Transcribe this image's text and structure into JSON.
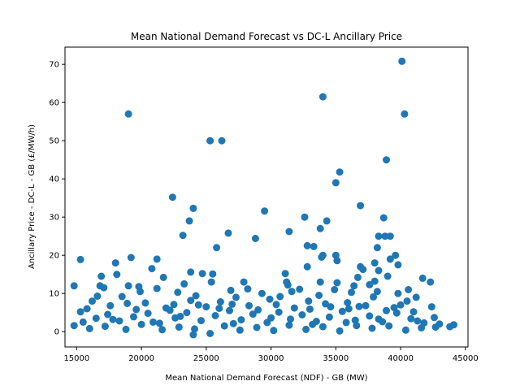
{
  "chart_data": {
    "type": "scatter",
    "title": "Mean National Demand Forecast vs DC-L Ancillary Price",
    "xlabel": "Mean National Demand Forecast (NDF) - GB (MW)",
    "ylabel": "Ancillary Price - DC-L - GB (£/MW/h)",
    "xlim": [
      14100,
      45200
    ],
    "ylim": [
      -4.0,
      74.5
    ],
    "x_ticks": [
      15000,
      20000,
      25000,
      30000,
      35000,
      40000,
      45000
    ],
    "y_ticks": [
      0,
      10,
      20,
      30,
      40,
      50,
      60,
      70
    ],
    "grid": false,
    "legend": "none",
    "marker_color": "#1f77b4",
    "series": [
      {
        "points": [
          [
            40100,
            70.8
          ],
          [
            34000,
            61.5
          ],
          [
            19000,
            57.0
          ],
          [
            40300,
            57.0
          ],
          [
            25300,
            50.0
          ],
          [
            26200,
            50.0
          ],
          [
            38900,
            45.0
          ],
          [
            35300,
            41.8
          ],
          [
            35000,
            39.0
          ],
          [
            22400,
            35.2
          ],
          [
            36900,
            33.0
          ],
          [
            24000,
            32.3
          ],
          [
            29500,
            31.6
          ],
          [
            32600,
            30.0
          ],
          [
            38700,
            29.8
          ],
          [
            34300,
            29.0
          ],
          [
            23700,
            29.0
          ],
          [
            33800,
            27.0
          ],
          [
            31400,
            26.2
          ],
          [
            26700,
            25.8
          ],
          [
            23200,
            25.2
          ],
          [
            38300,
            25.0
          ],
          [
            38800,
            25.0
          ],
          [
            39200,
            25.0
          ],
          [
            28800,
            24.4
          ],
          [
            32800,
            22.5
          ],
          [
            33300,
            22.3
          ],
          [
            38200,
            22.0
          ],
          [
            25800,
            22.0
          ],
          [
            15300,
            18.9
          ],
          [
            19200,
            19.4
          ],
          [
            21200,
            19.0
          ],
          [
            34000,
            20.0
          ],
          [
            35000,
            20.0
          ],
          [
            39600,
            20.0
          ],
          [
            39200,
            19.0
          ],
          [
            33900,
            19.5
          ],
          [
            35100,
            18.6
          ],
          [
            18000,
            18.0
          ],
          [
            38000,
            18.0
          ],
          [
            36900,
            17.0
          ],
          [
            39800,
            17.5
          ],
          [
            32800,
            17.0
          ],
          [
            37100,
            16.3
          ],
          [
            20800,
            16.5
          ],
          [
            38300,
            16.0
          ],
          [
            23800,
            15.6
          ],
          [
            24700,
            15.2
          ],
          [
            25500,
            15.1
          ],
          [
            31100,
            15.2
          ],
          [
            18100,
            15.0
          ],
          [
            16900,
            14.5
          ],
          [
            39000,
            14.5
          ],
          [
            21700,
            14.2
          ],
          [
            41700,
            14.0
          ],
          [
            36700,
            14.2
          ],
          [
            31200,
            13.0
          ],
          [
            33800,
            13.0
          ],
          [
            35100,
            12.8
          ],
          [
            42300,
            13.0
          ],
          [
            38000,
            13.2
          ],
          [
            23300,
            12.5
          ],
          [
            25400,
            13.0
          ],
          [
            27900,
            13.0
          ],
          [
            16800,
            12.0
          ],
          [
            19000,
            12.0
          ],
          [
            36400,
            12.0
          ],
          [
            31300,
            12.2
          ],
          [
            37600,
            12.3
          ],
          [
            17100,
            11.5
          ],
          [
            19800,
            11.8
          ],
          [
            21200,
            11.3
          ],
          [
            28200,
            11.2
          ],
          [
            32200,
            11.1
          ],
          [
            34900,
            11.0
          ],
          [
            40600,
            11.0
          ],
          [
            31600,
            10.5
          ],
          [
            14800,
            12.0
          ],
          [
            19900,
            10.5
          ],
          [
            22800,
            10.3
          ],
          [
            26900,
            10.8
          ],
          [
            29300,
            10.0
          ],
          [
            36200,
            10.3
          ],
          [
            38200,
            10.5
          ],
          [
            39800,
            10.0
          ],
          [
            16600,
            9.3
          ],
          [
            18500,
            9.2
          ],
          [
            24200,
            9.4
          ],
          [
            27300,
            9.0
          ],
          [
            30700,
            9.2
          ],
          [
            33700,
            9.5
          ],
          [
            37900,
            9.1
          ],
          [
            41200,
            9.0
          ],
          [
            15300,
            5.2
          ],
          [
            16200,
            8.0
          ],
          [
            20300,
            7.5
          ],
          [
            23800,
            8.2
          ],
          [
            26100,
            7.8
          ],
          [
            29900,
            8.5
          ],
          [
            32900,
            8.0
          ],
          [
            35900,
            7.6
          ],
          [
            40500,
            8.0
          ],
          [
            42400,
            6.5
          ],
          [
            17600,
            6.8
          ],
          [
            21900,
            6.2
          ],
          [
            25000,
            6.5
          ],
          [
            28300,
            6.8
          ],
          [
            31800,
            6.2
          ],
          [
            34600,
            6.5
          ],
          [
            37300,
            6.8
          ],
          [
            39500,
            6.3
          ],
          [
            43000,
            2.0
          ],
          [
            14800,
            1.6
          ],
          [
            43800,
            1.3
          ],
          [
            44100,
            1.8
          ],
          [
            42700,
            1.2
          ],
          [
            15500,
            2.5
          ],
          [
            16500,
            3.5
          ],
          [
            17400,
            4.5
          ],
          [
            18300,
            2.8
          ],
          [
            19400,
            3.9
          ],
          [
            20500,
            4.8
          ],
          [
            21400,
            2.2
          ],
          [
            22600,
            3.6
          ],
          [
            23500,
            5.0
          ],
          [
            24600,
            2.9
          ],
          [
            25700,
            4.2
          ],
          [
            26800,
            5.5
          ],
          [
            27700,
            3.1
          ],
          [
            28600,
            4.6
          ],
          [
            29700,
            2.4
          ],
          [
            30600,
            5.1
          ],
          [
            31500,
            3.3
          ],
          [
            32400,
            4.4
          ],
          [
            33500,
            2.7
          ],
          [
            34500,
            3.8
          ],
          [
            35500,
            5.3
          ],
          [
            36500,
            3.0
          ],
          [
            37600,
            4.1
          ],
          [
            38600,
            2.6
          ],
          [
            39700,
            4.9
          ],
          [
            40800,
            3.4
          ],
          [
            41800,
            2.3
          ],
          [
            42600,
            3.7
          ],
          [
            16000,
            0.8
          ],
          [
            17200,
            1.4
          ],
          [
            18800,
            0.6
          ],
          [
            20000,
            1.9
          ],
          [
            21600,
            0.5
          ],
          [
            22900,
            1.2
          ],
          [
            24100,
            0.7
          ],
          [
            25300,
            -0.5
          ],
          [
            24000,
            -0.8
          ],
          [
            26400,
            1.5
          ],
          [
            27600,
            0.4
          ],
          [
            28900,
            1.1
          ],
          [
            30200,
            0.3
          ],
          [
            31400,
            1.7
          ],
          [
            32700,
            0.6
          ],
          [
            34000,
            1.3
          ],
          [
            35300,
            0.2
          ],
          [
            36600,
            1.6
          ],
          [
            37800,
            0.9
          ],
          [
            39100,
            1.5
          ],
          [
            40400,
            0.4
          ],
          [
            41600,
            1.0
          ],
          [
            15800,
            6.0
          ],
          [
            19600,
            5.8
          ],
          [
            22200,
            5.6
          ],
          [
            26000,
            6.1
          ],
          [
            29000,
            5.7
          ],
          [
            33000,
            5.9
          ],
          [
            36000,
            6.0
          ],
          [
            38900,
            5.5
          ],
          [
            41000,
            5.2
          ],
          [
            17800,
            3.2
          ],
          [
            20900,
            2.5
          ],
          [
            23000,
            4.0
          ],
          [
            27100,
            2.1
          ],
          [
            30000,
            3.6
          ],
          [
            33200,
            1.9
          ],
          [
            35800,
            2.4
          ],
          [
            38300,
            3.3
          ],
          [
            41300,
            2.8
          ],
          [
            24400,
            7.0
          ],
          [
            27000,
            7.2
          ],
          [
            30400,
            7.1
          ],
          [
            34200,
            7.3
          ],
          [
            36800,
            6.6
          ],
          [
            18900,
            7.4
          ],
          [
            22500,
            7.1
          ],
          [
            40000,
            7.0
          ]
        ]
      }
    ]
  }
}
